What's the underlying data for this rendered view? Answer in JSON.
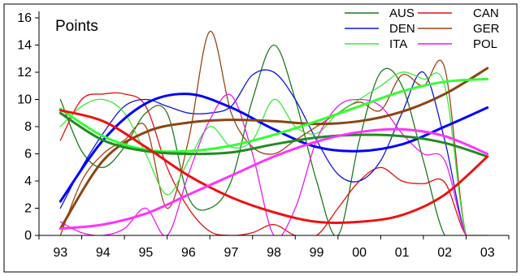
{
  "chart_data": {
    "type": "line",
    "title": "Points",
    "xlabel": "",
    "ylabel": "",
    "categories": [
      "93",
      "94",
      "95",
      "96",
      "97",
      "98",
      "99",
      "00",
      "01",
      "02",
      "03"
    ],
    "ylim": [
      0,
      16
    ],
    "yticks": [
      0,
      2,
      4,
      6,
      8,
      10,
      12,
      14,
      16
    ],
    "legend": "top-right",
    "grid": false,
    "series": [
      {
        "name": "AUS",
        "color": "#1f7a1f",
        "style": "raw",
        "x": [
          0,
          0.5,
          1,
          1.5,
          2,
          2.5,
          3,
          3.5,
          4,
          4.5,
          5,
          5.5,
          6,
          6.5,
          7,
          7.5,
          8,
          8.5,
          9,
          9.5,
          10
        ],
        "y": [
          10,
          6.2,
          5,
          6.5,
          9,
          9,
          2.8,
          2,
          4,
          10,
          14,
          10,
          4,
          0,
          7,
          12,
          11,
          5.5,
          0,
          0,
          0
        ]
      },
      {
        "name": "CAN",
        "color": "#e21010",
        "style": "raw",
        "x": [
          0,
          0.5,
          1,
          1.5,
          2,
          2.5,
          3,
          3.5,
          4,
          4.5,
          5,
          5.5,
          6,
          6.5,
          7,
          7.5,
          8,
          8.5,
          9,
          9.5,
          10
        ],
        "y": [
          7,
          10,
          10.4,
          10.4,
          9.5,
          5,
          2,
          0.3,
          0,
          0.2,
          0.8,
          0,
          0,
          2,
          4,
          5,
          4,
          3.8,
          3.9,
          0,
          0
        ]
      },
      {
        "name": "DEN",
        "color": "#1414d8",
        "style": "raw",
        "x": [
          0,
          0.5,
          1,
          1.5,
          2,
          2.5,
          3,
          3.5,
          4,
          4.5,
          5,
          5.5,
          6,
          6.5,
          7,
          7.5,
          8,
          8.5,
          9,
          9.5,
          10
        ],
        "y": [
          2,
          5,
          7.5,
          9.5,
          10,
          9.5,
          9,
          9,
          9.5,
          11.8,
          12,
          10,
          7,
          4.5,
          4,
          5.5,
          9,
          12,
          7,
          0,
          0
        ]
      },
      {
        "name": "GER",
        "color": "#9a4414",
        "style": "raw",
        "x": [
          0,
          0.5,
          1,
          1.5,
          2,
          2.5,
          3,
          3.5,
          4,
          4.5,
          5,
          5.5,
          6,
          6.5,
          7,
          7.5,
          8,
          8.5,
          9,
          9.5,
          10
        ],
        "y": [
          0,
          4,
          6,
          7,
          8,
          2,
          7,
          15,
          9,
          6.5,
          6,
          7,
          8,
          9,
          9.8,
          9.2,
          11.8,
          11,
          12.3,
          0,
          0
        ]
      },
      {
        "name": "ITA",
        "color": "#3ce83c",
        "style": "raw",
        "x": [
          0,
          0.5,
          1,
          1.5,
          2,
          2.5,
          3,
          3.5,
          4,
          4.5,
          5,
          5.5,
          6,
          6.5,
          7,
          7.5,
          8,
          8.5,
          9,
          9.5,
          10
        ],
        "y": [
          8,
          9.5,
          10,
          9,
          6,
          3,
          5.5,
          8,
          6.5,
          7,
          10,
          8,
          7.5,
          9,
          10,
          11,
          12,
          11.5,
          11,
          0,
          0
        ]
      },
      {
        "name": "POL",
        "color": "#ec1aec",
        "style": "raw",
        "x": [
          0,
          0.5,
          1,
          1.5,
          2,
          2.5,
          3,
          3.5,
          4,
          4.5,
          5,
          5.5,
          6,
          6.5,
          7,
          7.5,
          8,
          8.5,
          9,
          9.5,
          10
        ],
        "y": [
          1,
          0.2,
          0,
          0.5,
          2,
          0,
          4.5,
          8.5,
          10.3,
          6,
          0,
          2,
          7,
          9.5,
          10,
          9.5,
          7.5,
          6,
          5.5,
          0,
          0
        ]
      },
      {
        "name": "",
        "color": "#0000ff",
        "style": "trend",
        "x": [
          0,
          1,
          2,
          3,
          4,
          5,
          6,
          7,
          8,
          9,
          10
        ],
        "y": [
          2.5,
          7,
          9.7,
          10.4,
          9.4,
          7.8,
          6.5,
          6.2,
          6.7,
          8,
          9.4
        ]
      },
      {
        "name": "",
        "color": "#8b4513",
        "style": "trend",
        "x": [
          0,
          1,
          2,
          3,
          4,
          5,
          6,
          7,
          8,
          9,
          10
        ],
        "y": [
          0.5,
          5.5,
          7.6,
          8.3,
          8.5,
          8.4,
          8.2,
          8.4,
          9.1,
          10.4,
          12.3
        ]
      },
      {
        "name": "",
        "color": "#33ff33",
        "style": "trend",
        "x": [
          0,
          1,
          2,
          3,
          4,
          5,
          6,
          7,
          8,
          9,
          10
        ],
        "y": [
          9.3,
          7.3,
          6.3,
          6.2,
          6.6,
          7.4,
          8.4,
          9.5,
          10.6,
          11.3,
          11.5
        ]
      },
      {
        "name": "",
        "color": "#228b22",
        "style": "trend",
        "x": [
          0,
          1,
          2,
          3,
          4,
          5,
          6,
          7,
          8,
          9,
          10
        ],
        "y": [
          9,
          7,
          6.2,
          6,
          6.1,
          6.7,
          7.2,
          7.4,
          7.3,
          6.8,
          5.8
        ]
      },
      {
        "name": "",
        "color": "#ee1111",
        "style": "trend",
        "x": [
          0,
          1,
          2,
          3,
          4,
          5,
          6,
          7,
          8,
          9,
          10
        ],
        "y": [
          9.2,
          8.4,
          6.5,
          4.4,
          2.8,
          1.7,
          1,
          1,
          1.5,
          3,
          5.8
        ]
      },
      {
        "name": "",
        "color": "#ff33ff",
        "style": "trend",
        "x": [
          0,
          1,
          2,
          3,
          4,
          5,
          6,
          7,
          8,
          9,
          10
        ],
        "y": [
          0.5,
          0.8,
          1.6,
          3,
          4.4,
          5.8,
          6.9,
          7.6,
          7.8,
          7.3,
          6
        ]
      }
    ]
  }
}
